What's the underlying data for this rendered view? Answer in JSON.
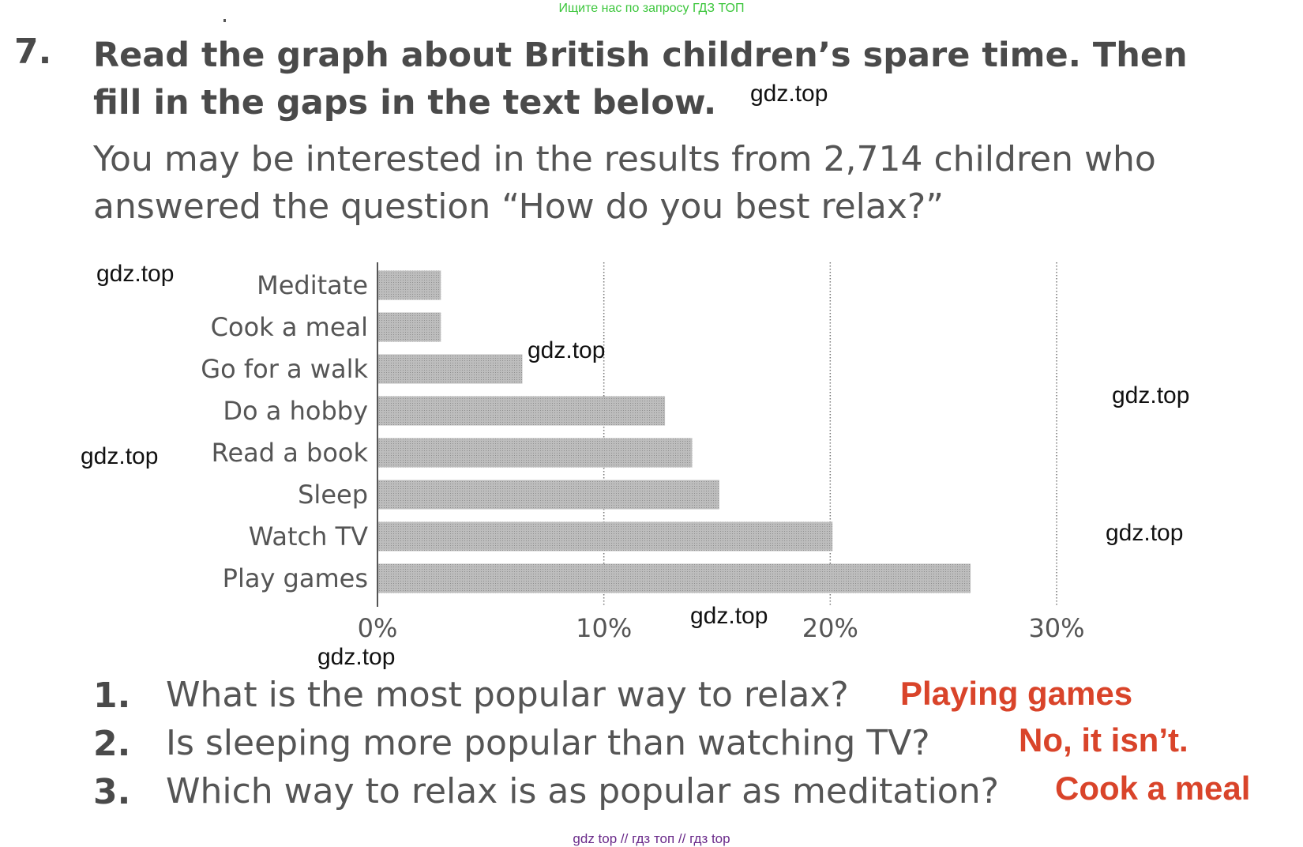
{
  "top_note": "Ищите нас по запросу ГДЗ ТОП",
  "exercise": {
    "number": "7.",
    "title_line1": "Read the graph about British children’s spare time. Then",
    "title_line2": "fill in the gaps in the text below.",
    "intro_line1": "You may be interested in the results from 2,714 children who",
    "intro_line2": "answered the question “How do you best relax?”"
  },
  "watermarks": [
    "gdz.top",
    "gdz.top",
    "gdz.top",
    "gdz.top",
    "gdz.top",
    "gdz.top",
    "gdz.top",
    "gdz.top"
  ],
  "chart_data": {
    "type": "bar",
    "orientation": "horizontal",
    "categories": [
      "Meditate",
      "Cook a meal",
      "Go for a walk",
      "Do a hobby",
      "Read a book",
      "Sleep",
      "Watch TV",
      "Play games"
    ],
    "values": [
      2.8,
      2.8,
      6.4,
      12.7,
      13.9,
      15.1,
      20.1,
      26.2
    ],
    "x_ticks": [
      "0%",
      "10%",
      "20%",
      "30%"
    ],
    "xlim": [
      0,
      30
    ],
    "title": "",
    "xlabel": "",
    "ylabel": "",
    "grid": "vertical dotted lines at 10%, 20%, 30%",
    "bar_color": "#bdbdbd"
  },
  "questions": [
    {
      "num": "1.",
      "text": "What is the most popular way to relax?",
      "answer": "Playing games"
    },
    {
      "num": "2.",
      "text": "Is sleeping more popular than watching TV?",
      "answer": "No, it isn’t."
    },
    {
      "num": "3.",
      "text": "Which way to relax is as popular as meditation?",
      "answer": "Cook a meal"
    }
  ],
  "footer": "gdz top  //  гдз топ  //  гдз top",
  "colors": {
    "answer": "#d9442a",
    "top_note": "#3cc63c",
    "footer": "#6a2a8a",
    "text": "#4a4a4a"
  }
}
